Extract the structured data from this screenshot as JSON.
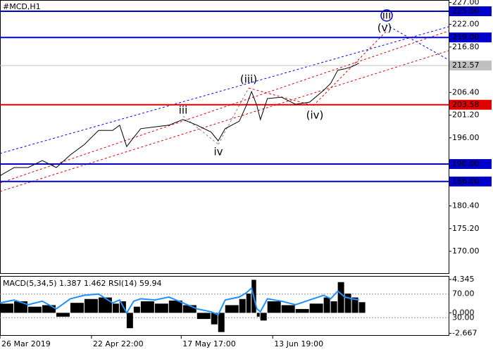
{
  "chart_data": [
    {
      "type": "line",
      "title": "#MCD,H1",
      "color": "#000000",
      "x": [
        0,
        16,
        32,
        48,
        64,
        80,
        96,
        112,
        128,
        136,
        144,
        152,
        160,
        176,
        192,
        208,
        224,
        240,
        248,
        256,
        272,
        280,
        286,
        292,
        296,
        304,
        320,
        336,
        352,
        368,
        376,
        384,
        392,
        400,
        408
      ],
      "values": [
        187.3,
        189.2,
        189.2,
        190.8,
        189.2,
        192.1,
        194.5,
        197.7,
        197.7,
        198.9,
        194.0,
        196.1,
        198.1,
        198.5,
        198.9,
        200.2,
        198.9,
        197.3,
        195.3,
        198.1,
        199.8,
        203.4,
        206.6,
        203.4,
        200.2,
        205.0,
        205.3,
        203.7,
        204.2,
        206.9,
        208.5,
        211.5,
        211.8,
        212.3,
        213.1
      ],
      "xlim": [
        0,
        510
      ],
      "xticks": [
        {
          "value": 0,
          "label": "26 Mar 2019"
        },
        {
          "value": 104,
          "label": "22 Apr 22:00"
        },
        {
          "value": 206,
          "label": "17 May 17:00"
        },
        {
          "value": 310,
          "label": "13 Jun 19:00"
        }
      ],
      "ylim": [
        165.0,
        227.58
      ],
      "yticks": [
        {
          "value": 170,
          "label": "170.00"
        },
        {
          "value": 175.2,
          "label": "175.20"
        },
        {
          "value": 180.4,
          "label": "180.40"
        },
        {
          "value": 196,
          "label": "196.00"
        },
        {
          "value": 201.2,
          "label": "201.20"
        },
        {
          "value": 206.4,
          "label": "206.40"
        },
        {
          "value": 216.8,
          "label": "216.80"
        },
        {
          "value": 222,
          "label": "222.00"
        },
        {
          "value": 227,
          "label": "227.00"
        }
      ],
      "levels": [
        {
          "value": 225,
          "label": "225.00",
          "color": "#0000cc"
        },
        {
          "value": 219,
          "label": "219.00",
          "color": "#0000cc"
        },
        {
          "value": 203.58,
          "label": "203.58",
          "color": "#e00000"
        },
        {
          "value": 190,
          "label": "190.00",
          "color": "#0000cc"
        },
        {
          "value": 186,
          "label": "186.00",
          "color": "#0000cc"
        },
        {
          "value": 212.57,
          "label": "212.57",
          "color": "#c0c0c0"
        }
      ],
      "annotations": [
        {
          "text": "iii",
          "color": "#0000cc"
        },
        {
          "text": "(v)",
          "color": "#e00000"
        },
        {
          "text": "(iii)",
          "color": "#e00000"
        },
        {
          "text": "(iv)",
          "color": "#e00000"
        },
        {
          "text": "iii",
          "color": "#808080"
        },
        {
          "text": "iv",
          "color": "#808080"
        }
      ]
    },
    {
      "type": "bar",
      "title": "MACD(5,34,5) 1.387 1.462 RSI(14) 59.94",
      "color": "#000000",
      "x": [
        0,
        16,
        32,
        48,
        64,
        80,
        96,
        112,
        128,
        136,
        144,
        152,
        160,
        176,
        192,
        208,
        224,
        240,
        248,
        256,
        272,
        280,
        286,
        292,
        296,
        304,
        320,
        336,
        352,
        368,
        376,
        384,
        392,
        400,
        408
      ],
      "values": [
        1.2,
        1.5,
        0.8,
        1.0,
        -0.5,
        1.3,
        1.8,
        2.0,
        1.2,
        1.5,
        -2.0,
        0.8,
        1.5,
        1.2,
        1.6,
        1.0,
        -0.8,
        -1.5,
        -2.5,
        1.0,
        1.8,
        2.5,
        4.3,
        -0.5,
        -1.0,
        1.5,
        1.0,
        0.5,
        1.2,
        2.0,
        1.5,
        4.0,
        2.5,
        2.0,
        1.387
      ],
      "xlim": [
        0,
        510
      ],
      "ylim": [
        -2.9,
        4.71
      ],
      "yticks": [
        {
          "value": 4.345,
          "label": "4.345"
        },
        {
          "value": 0,
          "label": "0.000"
        },
        {
          "value": -2.667,
          "label": "-2.667"
        }
      ],
      "y2lim": [
        0.6,
        99.4
      ],
      "y2ticks": [
        {
          "value": 70,
          "label": "70.00"
        },
        {
          "value": 30,
          "label": "30.00"
        }
      ],
      "series": [
        {
          "color": "#1e90ff",
          "axis": "y2",
          "values": [
            55,
            60,
            52,
            58,
            45,
            62,
            68,
            70,
            55,
            60,
            38,
            58,
            62,
            60,
            65,
            55,
            45,
            40,
            35,
            60,
            65,
            72,
            80,
            45,
            40,
            62,
            58,
            52,
            60,
            68,
            62,
            75,
            65,
            62,
            59.94
          ]
        }
      ]
    }
  ]
}
